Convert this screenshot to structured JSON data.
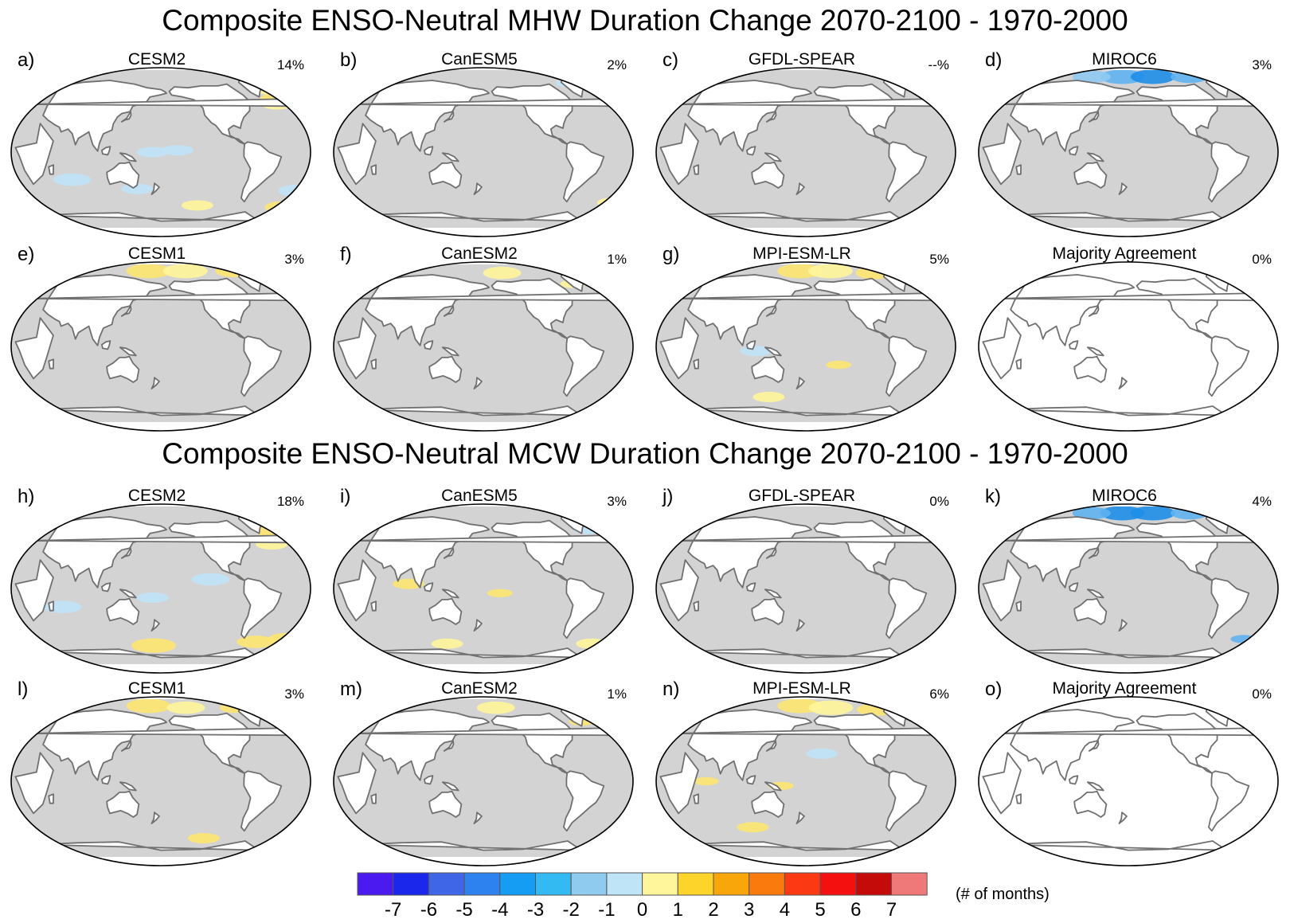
{
  "titles": {
    "mhw": "Composite ENSO-Neutral MHW Duration Change 2070-2100 - 1970-2000",
    "mcw": "Composite ENSO-Neutral MCW Duration Change 2070-2100 - 1970-2000"
  },
  "panels": [
    {
      "label": "a)",
      "model": "CESM2",
      "percent": "14%",
      "background": "#d3d3d3",
      "blobs": [
        {
          "lon": -15,
          "lat": 70,
          "r": 7,
          "color": "#fff59a"
        },
        {
          "lon": -18,
          "lat": 58,
          "r": 6,
          "color": "#fde570"
        },
        {
          "lon": -25,
          "lat": 52,
          "r": 5,
          "color": "#fff59a"
        },
        {
          "lon": 170,
          "lat": 0,
          "r": 5,
          "color": "#bfe3f7"
        },
        {
          "lon": -160,
          "lat": 2,
          "r": 5,
          "color": "#bfe3f7"
        },
        {
          "lon": 70,
          "lat": -30,
          "r": 6,
          "color": "#bfe3f7"
        },
        {
          "lon": 150,
          "lat": -40,
          "r": 5,
          "color": "#bfe3f7"
        },
        {
          "lon": -5,
          "lat": -42,
          "r": 6,
          "color": "#bfe3f7"
        },
        {
          "lon": -10,
          "lat": -60,
          "r": 6,
          "color": "#fde570"
        },
        {
          "lon": -130,
          "lat": -58,
          "r": 5,
          "color": "#fff59a"
        }
      ]
    },
    {
      "label": "b)",
      "model": "CanESM5",
      "percent": "2%",
      "background": "#d3d3d3",
      "blobs": [
        {
          "lon": -50,
          "lat": 75,
          "r": 4,
          "color": "#bfe3f7"
        },
        {
          "lon": -5,
          "lat": -55,
          "r": 5,
          "color": "#fff59a"
        }
      ]
    },
    {
      "label": "c)",
      "model": "GFDL-SPEAR",
      "percent": "--%",
      "background": "#d3d3d3",
      "blobs": []
    },
    {
      "label": "d)",
      "model": "MIROC6",
      "percent": "3%",
      "background": "#d3d3d3",
      "blobs": [
        {
          "lon": 170,
          "lat": 82,
          "r": 7,
          "color": "#5fb3f0"
        },
        {
          "lon": -140,
          "lat": 82,
          "r": 7,
          "color": "#1f8ee8"
        },
        {
          "lon": -80,
          "lat": 82,
          "r": 6,
          "color": "#5fb3f0"
        },
        {
          "lon": 120,
          "lat": 82,
          "r": 6,
          "color": "#8fcaf2"
        }
      ]
    },
    {
      "label": "e)",
      "model": "CESM1",
      "percent": "3%",
      "background": "#d3d3d3",
      "blobs": [
        {
          "lon": 160,
          "lat": 82,
          "r": 7,
          "color": "#fde570"
        },
        {
          "lon": -140,
          "lat": 82,
          "r": 7,
          "color": "#fff59a"
        },
        {
          "lon": -60,
          "lat": 82,
          "r": 6,
          "color": "#fde570"
        }
      ]
    },
    {
      "label": "f)",
      "model": "CanESM2",
      "percent": "1%",
      "background": "#d3d3d3",
      "blobs": [
        {
          "lon": -150,
          "lat": 80,
          "r": 6,
          "color": "#fff59a"
        },
        {
          "lon": -50,
          "lat": 68,
          "r": 4,
          "color": "#fff59a"
        }
      ]
    },
    {
      "label": "g)",
      "model": "MPI-ESM-LR",
      "percent": "5%",
      "background": "#d3d3d3",
      "blobs": [
        {
          "lon": 170,
          "lat": 82,
          "r": 7,
          "color": "#fde570"
        },
        {
          "lon": -140,
          "lat": 82,
          "r": 7,
          "color": "#fff59a"
        },
        {
          "lon": -70,
          "lat": 80,
          "r": 6,
          "color": "#fde570"
        },
        {
          "lon": -140,
          "lat": -20,
          "r": 4,
          "color": "#fde570"
        },
        {
          "lon": 120,
          "lat": -5,
          "r": 5,
          "color": "#bfe3f7"
        },
        {
          "lon": 130,
          "lat": -55,
          "r": 5,
          "color": "#fff59a"
        }
      ]
    },
    {
      "label": "",
      "model": "Majority Agreement",
      "percent": "0%",
      "background": "#ffffff",
      "blobs": []
    },
    {
      "label": "h)",
      "model": "CESM2",
      "percent": "18%",
      "background": "#d3d3d3",
      "blobs": [
        {
          "lon": -15,
          "lat": 62,
          "r": 7,
          "color": "#fde570"
        },
        {
          "lon": -35,
          "lat": 48,
          "r": 5,
          "color": "#fff59a"
        },
        {
          "lon": -120,
          "lat": 10,
          "r": 6,
          "color": "#bfe3f7"
        },
        {
          "lon": 170,
          "lat": -10,
          "r": 5,
          "color": "#bfe3f7"
        },
        {
          "lon": 60,
          "lat": -20,
          "r": 6,
          "color": "#bfe3f7"
        },
        {
          "lon": 170,
          "lat": -62,
          "r": 7,
          "color": "#fde570"
        },
        {
          "lon": -50,
          "lat": -58,
          "r": 6,
          "color": "#fde570"
        },
        {
          "lon": -10,
          "lat": -55,
          "r": 6,
          "color": "#fde570"
        }
      ]
    },
    {
      "label": "i)",
      "model": "CanESM5",
      "percent": "3%",
      "background": "#d3d3d3",
      "blobs": [
        {
          "lon": 90,
          "lat": 5,
          "r": 5,
          "color": "#fde570"
        },
        {
          "lon": -160,
          "lat": -5,
          "r": 4,
          "color": "#fde570"
        },
        {
          "lon": -30,
          "lat": 65,
          "r": 5,
          "color": "#bfe3f7"
        },
        {
          "lon": 130,
          "lat": -60,
          "r": 5,
          "color": "#fff59a"
        },
        {
          "lon": -30,
          "lat": -60,
          "r": 5,
          "color": "#fff59a"
        }
      ]
    },
    {
      "label": "j)",
      "model": "GFDL-SPEAR",
      "percent": "0%",
      "background": "#d3d3d3",
      "blobs": []
    },
    {
      "label": "k)",
      "model": "MIROC6",
      "percent": "4%",
      "background": "#d3d3d3",
      "blobs": [
        {
          "lon": 170,
          "lat": 82,
          "r": 7,
          "color": "#1f8ee8"
        },
        {
          "lon": -140,
          "lat": 82,
          "r": 7,
          "color": "#1f8ee8"
        },
        {
          "lon": -80,
          "lat": 82,
          "r": 6,
          "color": "#5fb3f0"
        },
        {
          "lon": 120,
          "lat": 82,
          "r": 6,
          "color": "#5fb3f0"
        },
        {
          "lon": -25,
          "lat": -55,
          "r": 4,
          "color": "#5fb3f0"
        }
      ]
    },
    {
      "label": "l)",
      "model": "CESM1",
      "percent": "3%",
      "background": "#d3d3d3",
      "blobs": [
        {
          "lon": 160,
          "lat": 82,
          "r": 7,
          "color": "#fde570"
        },
        {
          "lon": -140,
          "lat": 80,
          "r": 6,
          "color": "#fff59a"
        },
        {
          "lon": -60,
          "lat": 80,
          "r": 5,
          "color": "#fde570"
        },
        {
          "lon": -120,
          "lat": -62,
          "r": 5,
          "color": "#fde570"
        }
      ]
    },
    {
      "label": "m)",
      "model": "CanESM2",
      "percent": "1%",
      "background": "#d3d3d3",
      "blobs": [
        {
          "lon": -160,
          "lat": 80,
          "r": 6,
          "color": "#fff59a"
        },
        {
          "lon": -40,
          "lat": 65,
          "r": 4,
          "color": "#fde570"
        }
      ]
    },
    {
      "label": "n)",
      "model": "MPI-ESM-LR",
      "percent": "6%",
      "background": "#d3d3d3",
      "blobs": [
        {
          "lon": 170,
          "lat": 82,
          "r": 7,
          "color": "#fde570"
        },
        {
          "lon": -140,
          "lat": 80,
          "r": 7,
          "color": "#fff59a"
        },
        {
          "lon": -70,
          "lat": 78,
          "r": 6,
          "color": "#fde570"
        },
        {
          "lon": -160,
          "lat": 30,
          "r": 5,
          "color": "#bfe3f7"
        },
        {
          "lon": 150,
          "lat": -5,
          "r": 4,
          "color": "#fde570"
        },
        {
          "lon": 110,
          "lat": -50,
          "r": 5,
          "color": "#fde570"
        },
        {
          "lon": 60,
          "lat": 0,
          "r": 4,
          "color": "#fde570"
        }
      ]
    },
    {
      "label": "o)",
      "model": "Majority Agreement",
      "percent": "0%",
      "background": "#ffffff",
      "blobs": []
    }
  ],
  "colorbar": {
    "ticks": [
      "-7",
      "-6",
      "-5",
      "-4",
      "-3",
      "-2",
      "-1",
      "0",
      "1",
      "2",
      "3",
      "4",
      "5",
      "6",
      "7"
    ],
    "colors": [
      "#4a1af0",
      "#1b28ec",
      "#3f66e6",
      "#2d82ef",
      "#149df2",
      "#33baf2",
      "#8ecbef",
      "#bfe3f7",
      "#fff59a",
      "#fdd42a",
      "#f9a60b",
      "#fa7a0e",
      "#fb3a13",
      "#f51010",
      "#c50a0a",
      "#ef7878"
    ],
    "unit": "(# of months)"
  }
}
